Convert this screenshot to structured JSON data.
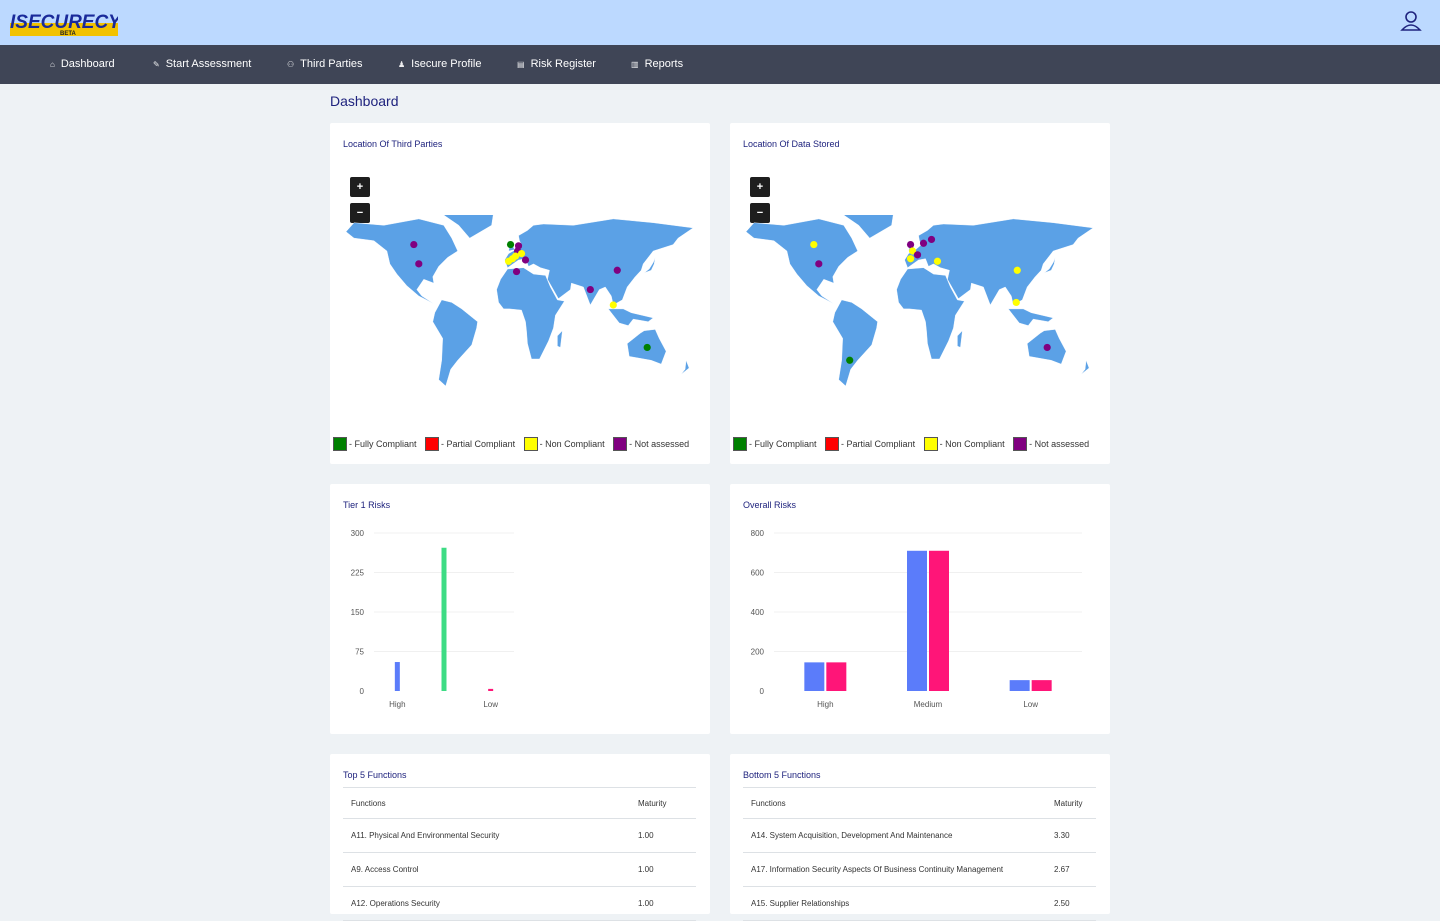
{
  "header": {
    "logo_text": "ISECURECYBER",
    "logo_sub": "BETA"
  },
  "nav": [
    {
      "label": "Dashboard",
      "icon": "home-icon",
      "glyph": "⌂"
    },
    {
      "label": "Start Assessment",
      "icon": "wrench-icon",
      "glyph": "✎"
    },
    {
      "label": "Third Parties",
      "icon": "users-icon",
      "glyph": "⚇"
    },
    {
      "label": "Isecure Profile",
      "icon": "person-icon",
      "glyph": "♟"
    },
    {
      "label": "Risk Register",
      "icon": "register-icon",
      "glyph": "▤"
    },
    {
      "label": "Reports",
      "icon": "report-icon",
      "glyph": "▥"
    }
  ],
  "page_title": "Dashboard",
  "maps": [
    {
      "title": "Location Of Third Parties",
      "zoom_in": "+",
      "zoom_out": "−",
      "markers": [
        {
          "lat": 55,
          "lon": -100,
          "status": "not-assessed"
        },
        {
          "lat": 40,
          "lon": -95,
          "status": "not-assessed"
        },
        {
          "lat": 55,
          "lon": -3,
          "status": "fully-compliant"
        },
        {
          "lat": 54,
          "lon": 5,
          "status": "not-assessed"
        },
        {
          "lat": 50,
          "lon": 4,
          "status": "not-assessed"
        },
        {
          "lat": 48,
          "lon": 8,
          "status": "non-compliant"
        },
        {
          "lat": 46,
          "lon": 2,
          "status": "non-compliant"
        },
        {
          "lat": 44,
          "lon": -1,
          "status": "non-compliant"
        },
        {
          "lat": 42,
          "lon": -5,
          "status": "non-compliant"
        },
        {
          "lat": 43,
          "lon": 12,
          "status": "not-assessed"
        },
        {
          "lat": 34,
          "lon": 3,
          "status": "not-assessed"
        },
        {
          "lat": 20,
          "lon": 77,
          "status": "not-assessed"
        },
        {
          "lat": 35,
          "lon": 104,
          "status": "not-assessed"
        },
        {
          "lat": 8,
          "lon": 100,
          "status": "non-compliant"
        },
        {
          "lat": -25,
          "lon": 134,
          "status": "fully-compliant"
        }
      ]
    },
    {
      "title": "Location Of Data Stored",
      "zoom_in": "+",
      "zoom_out": "−",
      "markers": [
        {
          "lat": 55,
          "lon": -100,
          "status": "non-compliant"
        },
        {
          "lat": 40,
          "lon": -95,
          "status": "not-assessed"
        },
        {
          "lat": 55,
          "lon": -3,
          "status": "not-assessed"
        },
        {
          "lat": 50,
          "lon": -1,
          "status": "non-compliant"
        },
        {
          "lat": 47,
          "lon": 4,
          "status": "not-assessed"
        },
        {
          "lat": 56,
          "lon": 10,
          "status": "not-assessed"
        },
        {
          "lat": 59,
          "lon": 18,
          "status": "not-assessed"
        },
        {
          "lat": 44,
          "lon": -3,
          "status": "non-compliant"
        },
        {
          "lat": 42,
          "lon": 24,
          "status": "non-compliant"
        },
        {
          "lat": 35,
          "lon": 104,
          "status": "non-compliant"
        },
        {
          "lat": 10,
          "lon": 103,
          "status": "non-compliant"
        },
        {
          "lat": -25,
          "lon": 134,
          "status": "not-assessed"
        },
        {
          "lat": -35,
          "lon": -64,
          "status": "fully-compliant"
        }
      ]
    }
  ],
  "legend": [
    {
      "label": "- Fully Compliant",
      "color": "#008000",
      "key": "fully-compliant"
    },
    {
      "label": "- Partial Compliant",
      "color": "#ff0000",
      "key": "partial-compliant"
    },
    {
      "label": "- Non Compliant",
      "color": "#ffff00",
      "key": "non-compliant"
    },
    {
      "label": "- Not assessed",
      "color": "#800080",
      "key": "not-assessed"
    }
  ],
  "chart_data": [
    {
      "type": "bar",
      "title": "Tier 1 Risks",
      "categories": [
        "High",
        "",
        "Low"
      ],
      "series": [
        {
          "color": "#5b7cfa",
          "values": [
            55,
            0,
            0
          ]
        },
        {
          "color": "#3ddc84",
          "values": [
            0,
            272,
            0
          ]
        },
        {
          "color": "#ff1578",
          "values": [
            0,
            0,
            4
          ]
        }
      ],
      "ylim": [
        0,
        300
      ],
      "yticks": [
        0,
        75,
        150,
        225,
        300
      ]
    },
    {
      "type": "bar",
      "title": "Overall Risks",
      "categories": [
        "High",
        "Medium",
        "Low"
      ],
      "series": [
        {
          "color": "#5b7cfa",
          "values": [
            145,
            710,
            55
          ]
        },
        {
          "color": "#ff1578",
          "values": [
            145,
            710,
            55
          ]
        }
      ],
      "ylim": [
        0,
        800
      ],
      "yticks": [
        0,
        200,
        400,
        600,
        800
      ]
    }
  ],
  "tables": [
    {
      "title": "Top 5 Functions",
      "headers": [
        "Functions",
        "Maturity"
      ],
      "rows": [
        [
          "A11. Physical And Environmental Security",
          "1.00"
        ],
        [
          "A9. Access Control",
          "1.00"
        ],
        [
          "A12. Operations Security",
          "1.00"
        ]
      ]
    },
    {
      "title": "Bottom 5 Functions",
      "headers": [
        "Functions",
        "Maturity"
      ],
      "rows": [
        [
          "A14. System Acquisition, Development And Maintenance",
          "3.30"
        ],
        [
          "A17. Information Security Aspects Of Business Continuity Management",
          "2.67"
        ],
        [
          "A15. Supplier Relationships",
          "2.50"
        ]
      ]
    }
  ]
}
